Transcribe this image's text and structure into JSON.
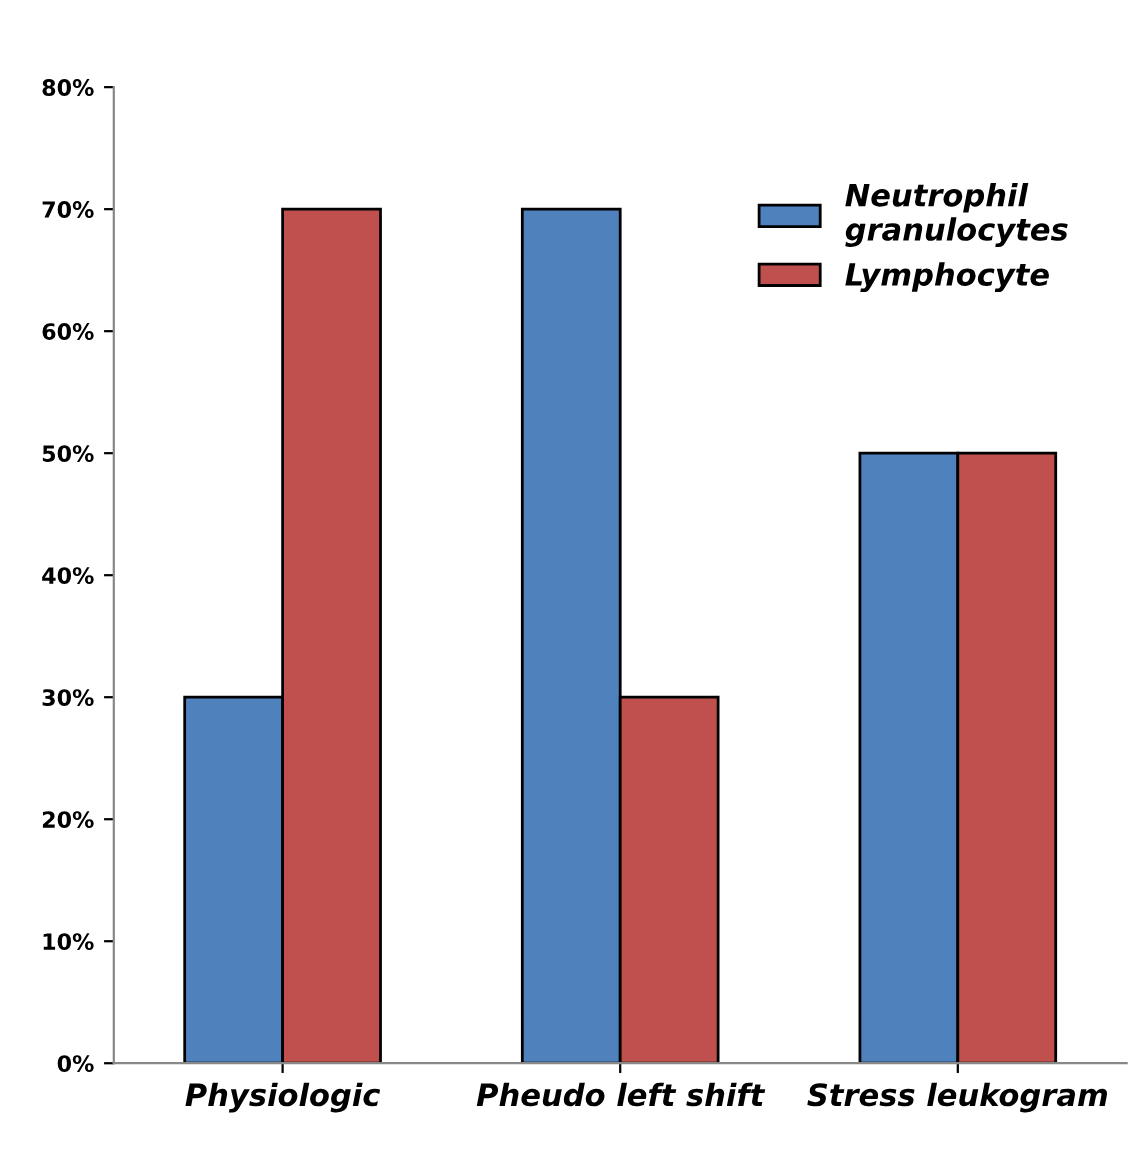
{
  "chart_data": {
    "type": "bar",
    "categories": [
      "Physiologic",
      "Pheudo left shift",
      "Stress leukogram"
    ],
    "series": [
      {
        "name": "Neutrophil granulocytes",
        "color": "#4f81bd",
        "values": [
          30,
          70,
          50
        ]
      },
      {
        "name": "Lymphocyte",
        "color": "#c0504d",
        "values": [
          70,
          30,
          50
        ]
      }
    ],
    "ylim": [
      0,
      80
    ],
    "yticks": [
      {
        "value": 0,
        "label": "0%"
      },
      {
        "value": 10,
        "label": "10%"
      },
      {
        "value": 20,
        "label": "20%"
      },
      {
        "value": 30,
        "label": "30%"
      },
      {
        "value": 40,
        "label": "40%"
      },
      {
        "value": 50,
        "label": "50%"
      },
      {
        "value": 60,
        "label": "60%"
      },
      {
        "value": 70,
        "label": "70%"
      },
      {
        "value": 80,
        "label": "80%"
      }
    ],
    "grid": false,
    "legend": "top right"
  }
}
